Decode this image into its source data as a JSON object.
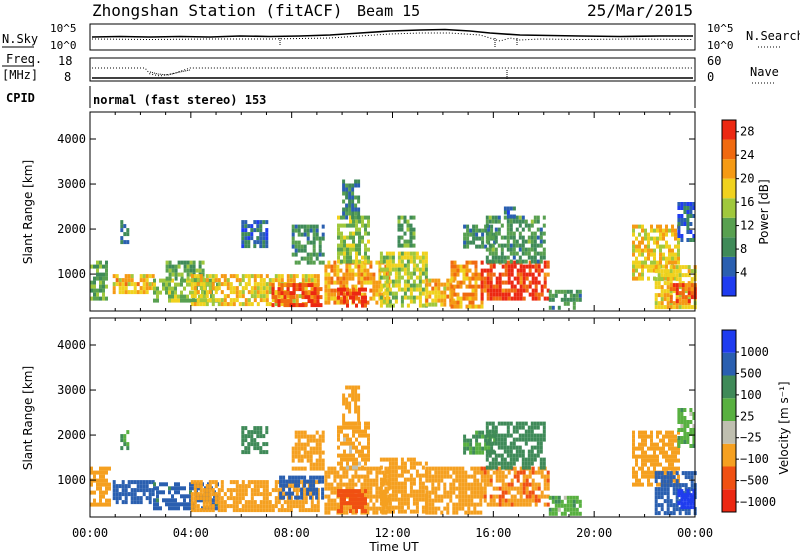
{
  "header": {
    "station": "Zhongshan Station (fitACF)",
    "beam": "Beam 15",
    "date": "25/Mar/2015"
  },
  "colors": {
    "power": [
      "#1f3cf0",
      "#2a5fb0",
      "#3f8a58",
      "#58a050",
      "#a0c83c",
      "#f0d21e",
      "#f59a14",
      "#f06a10",
      "#ec2812"
    ],
    "velocity": [
      "#ec2812",
      "#f05012",
      "#f5a020",
      "#bfbfb0",
      "#58b040",
      "#3f8a58",
      "#2a5fb0",
      "#1f3cf0"
    ]
  },
  "labels": {
    "nsky": "N.Sky",
    "nsearch": "N.Search",
    "freq_top": "Freq.",
    "freq_unit": "[MHz]",
    "cpid": "CPID",
    "nave": "Nave",
    "sky_top": "10^5",
    "sky_bot": "10^0",
    "freq_hi": "18",
    "freq_lo": "8",
    "nave_hi": "60",
    "nave_lo": "0",
    "cpid_text": "normal (fast stereo) 153"
  },
  "chart_data": [
    {
      "type": "heatmap",
      "title": "",
      "xlabel": "Time UT",
      "ylabel": "Slant Range [km]",
      "x_ticks": [
        "00:00",
        "04:00",
        "08:00",
        "12:00",
        "16:00",
        "20:00",
        "00:00"
      ],
      "x_range_hours": [
        0,
        24
      ],
      "y_ticks": [
        "1000",
        "2000",
        "3000",
        "4000"
      ],
      "y_range": [
        180,
        4600
      ],
      "colorbar": {
        "label": "Power [dB]",
        "ticks": [
          "4",
          "8",
          "12",
          "16",
          "20",
          "24",
          "28"
        ],
        "range": [
          0,
          30
        ]
      },
      "regions": [
        {
          "t0": 0.0,
          "t1": 0.7,
          "r0": 500,
          "r1": 1300,
          "value": 12
        },
        {
          "t0": 0.9,
          "t1": 2.5,
          "r0": 600,
          "r1": 1000,
          "value": 20
        },
        {
          "t0": 1.2,
          "t1": 1.5,
          "r0": 1700,
          "r1": 2200,
          "value": 6
        },
        {
          "t0": 2.5,
          "t1": 5.0,
          "r0": 400,
          "r1": 900,
          "value": 14
        },
        {
          "t0": 3.0,
          "t1": 4.5,
          "r0": 900,
          "r1": 1300,
          "value": 11
        },
        {
          "t0": 4.0,
          "t1": 9.0,
          "r0": 350,
          "r1": 1000,
          "value": 19
        },
        {
          "t0": 6.0,
          "t1": 7.0,
          "r0": 1600,
          "r1": 2200,
          "value": 6
        },
        {
          "t0": 7.2,
          "t1": 9.2,
          "r0": 350,
          "r1": 800,
          "value": 27
        },
        {
          "t0": 8.0,
          "t1": 9.3,
          "r0": 1300,
          "r1": 2100,
          "value": 9
        },
        {
          "t0": 9.3,
          "t1": 11.8,
          "r0": 350,
          "r1": 1300,
          "value": 21
        },
        {
          "t0": 9.8,
          "t1": 10.9,
          "r0": 300,
          "r1": 700,
          "value": 28
        },
        {
          "t0": 9.8,
          "t1": 11.0,
          "r0": 1300,
          "r1": 2300,
          "value": 14
        },
        {
          "t0": 10.0,
          "t1": 10.7,
          "r0": 2300,
          "r1": 3100,
          "value": 8
        },
        {
          "t0": 11.5,
          "t1": 13.4,
          "r0": 300,
          "r1": 1500,
          "value": 16
        },
        {
          "t0": 12.2,
          "t1": 12.8,
          "r0": 1600,
          "r1": 2300,
          "value": 11
        },
        {
          "t0": 13.3,
          "t1": 14.4,
          "r0": 350,
          "r1": 900,
          "value": 20
        },
        {
          "t0": 14.3,
          "t1": 15.5,
          "r0": 300,
          "r1": 1300,
          "value": 22
        },
        {
          "t0": 14.8,
          "t1": 16.0,
          "r0": 1600,
          "r1": 2100,
          "value": 9
        },
        {
          "t0": 15.5,
          "t1": 18.2,
          "r0": 450,
          "r1": 1300,
          "value": 27
        },
        {
          "t0": 15.7,
          "t1": 18.0,
          "r0": 1300,
          "r1": 2300,
          "value": 10
        },
        {
          "t0": 16.3,
          "t1": 16.8,
          "r0": 2300,
          "r1": 2500,
          "value": 5
        },
        {
          "t0": 18.2,
          "t1": 19.5,
          "r0": 250,
          "r1": 650,
          "value": 9
        },
        {
          "t0": 21.5,
          "t1": 23.3,
          "r0": 900,
          "r1": 2100,
          "value": 18
        },
        {
          "t0": 22.4,
          "t1": 24.0,
          "r0": 300,
          "r1": 1200,
          "value": 19
        },
        {
          "t0": 23.0,
          "t1": 24.0,
          "r0": 400,
          "r1": 800,
          "value": 26
        },
        {
          "t0": 23.3,
          "t1": 24.0,
          "r0": 1800,
          "r1": 2600,
          "value": 5
        }
      ]
    },
    {
      "type": "heatmap",
      "title": "",
      "xlabel": "Time UT",
      "ylabel": "Slant Range [km]",
      "x_ticks": [
        "00:00",
        "04:00",
        "08:00",
        "12:00",
        "16:00",
        "20:00",
        "00:00"
      ],
      "x_range_hours": [
        0,
        24
      ],
      "y_ticks": [
        "1000",
        "2000",
        "3000",
        "4000"
      ],
      "y_range": [
        180,
        4600
      ],
      "colorbar": {
        "label": "Velocity [m s⁻¹]",
        "ticks": [
          "1000",
          "500",
          "100",
          "25",
          "−25",
          "−100",
          "−500",
          "−1000"
        ],
        "bins": [
          -1000,
          -500,
          -100,
          -25,
          25,
          100,
          500,
          1000
        ]
      },
      "regions": [
        {
          "t0": 0.0,
          "t1": 0.8,
          "r0": 500,
          "r1": 1300,
          "value": -200
        },
        {
          "t0": 0.9,
          "t1": 2.5,
          "r0": 500,
          "r1": 1000,
          "value": 200
        },
        {
          "t0": 1.2,
          "t1": 1.5,
          "r0": 1700,
          "r1": 2200,
          "value": 40
        },
        {
          "t0": 2.5,
          "t1": 5.0,
          "r0": 350,
          "r1": 950,
          "value": 150
        },
        {
          "t0": 4.0,
          "t1": 9.0,
          "r0": 300,
          "r1": 1000,
          "value": -250
        },
        {
          "t0": 6.0,
          "t1": 7.0,
          "r0": 1600,
          "r1": 2200,
          "value": 60
        },
        {
          "t0": 7.5,
          "t1": 9.2,
          "r0": 600,
          "r1": 1100,
          "value": 180
        },
        {
          "t0": 8.0,
          "t1": 9.3,
          "r0": 1300,
          "r1": 2100,
          "value": -200
        },
        {
          "t0": 9.3,
          "t1": 11.8,
          "r0": 300,
          "r1": 1300,
          "value": -300
        },
        {
          "t0": 9.8,
          "t1": 10.9,
          "r0": 350,
          "r1": 800,
          "value": -700
        },
        {
          "t0": 9.8,
          "t1": 11.0,
          "r0": 1300,
          "r1": 2300,
          "value": -150
        },
        {
          "t0": 10.0,
          "t1": 10.7,
          "r0": 2300,
          "r1": 3100,
          "value": -200
        },
        {
          "t0": 11.5,
          "t1": 13.4,
          "r0": 300,
          "r1": 1500,
          "value": -250
        },
        {
          "t0": 13.3,
          "t1": 15.5,
          "r0": 300,
          "r1": 1300,
          "value": -200
        },
        {
          "t0": 14.8,
          "t1": 16.0,
          "r0": 1600,
          "r1": 2100,
          "value": 30
        },
        {
          "t0": 15.5,
          "t1": 18.2,
          "r0": 450,
          "r1": 1300,
          "value": -400
        },
        {
          "t0": 15.7,
          "t1": 18.0,
          "r0": 1300,
          "r1": 2300,
          "value": 60
        },
        {
          "t0": 18.2,
          "t1": 19.5,
          "r0": 250,
          "r1": 650,
          "value": 0
        },
        {
          "t0": 21.5,
          "t1": 23.3,
          "r0": 900,
          "r1": 2100,
          "value": -200
        },
        {
          "t0": 22.4,
          "t1": 24.0,
          "r0": 300,
          "r1": 1200,
          "value": 300
        },
        {
          "t0": 23.3,
          "t1": 24.0,
          "r0": 400,
          "r1": 800,
          "value": 800
        },
        {
          "t0": 23.3,
          "t1": 24.0,
          "r0": 1800,
          "r1": 2600,
          "value": 0
        }
      ]
    }
  ]
}
